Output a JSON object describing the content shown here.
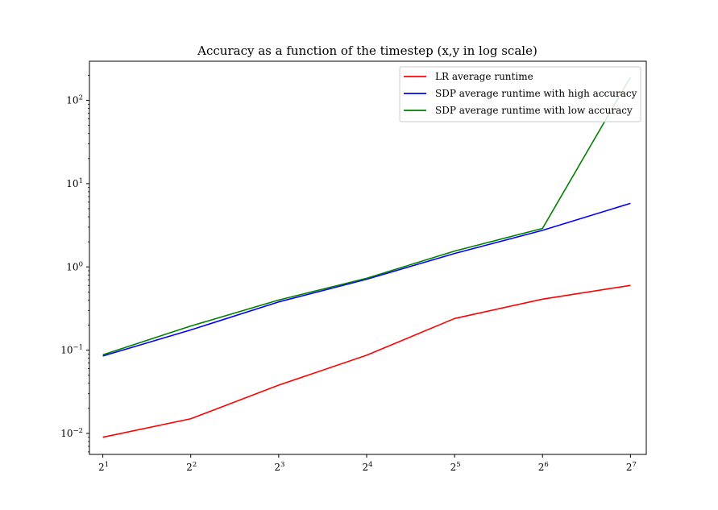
{
  "chart_data": {
    "type": "line",
    "title": "Accuracy as a function of the timestep (x,y in log scale)",
    "xlabel": "",
    "ylabel": "",
    "xscale": "log2",
    "yscale": "log10",
    "x": [
      2,
      4,
      8,
      16,
      32,
      64,
      128
    ],
    "x_tick_labels": [
      {
        "base": "2",
        "exp": "1"
      },
      {
        "base": "2",
        "exp": "2"
      },
      {
        "base": "2",
        "exp": "3"
      },
      {
        "base": "2",
        "exp": "4"
      },
      {
        "base": "2",
        "exp": "5"
      },
      {
        "base": "2",
        "exp": "6"
      },
      {
        "base": "2",
        "exp": "7"
      }
    ],
    "y_tick_labels": [
      {
        "base": "10",
        "exp": "−2"
      },
      {
        "base": "10",
        "exp": "−1"
      },
      {
        "base": "10",
        "exp": "0"
      },
      {
        "base": "10",
        "exp": "1"
      },
      {
        "base": "10",
        "exp": "2"
      }
    ],
    "y_tick_values": [
      0.01,
      0.1,
      1,
      10,
      100
    ],
    "xlim": [
      1.8,
      145
    ],
    "ylim": [
      0.0056,
      295
    ],
    "grid": false,
    "legend_position": "top-right",
    "series": [
      {
        "name": "LR average runtime",
        "color": "#ff0000",
        "values": [
          0.009,
          0.015,
          0.038,
          0.087,
          0.24,
          0.41,
          0.6
        ]
      },
      {
        "name": "SDP average runtime with high accuracy",
        "color": "#0000ff",
        "values": [
          0.085,
          0.175,
          0.38,
          0.71,
          1.45,
          2.75,
          5.8
        ]
      },
      {
        "name": "SDP average runtime with low accuracy",
        "color": "#008000",
        "values": [
          0.088,
          0.195,
          0.4,
          0.73,
          1.55,
          2.9,
          190
        ]
      }
    ]
  }
}
